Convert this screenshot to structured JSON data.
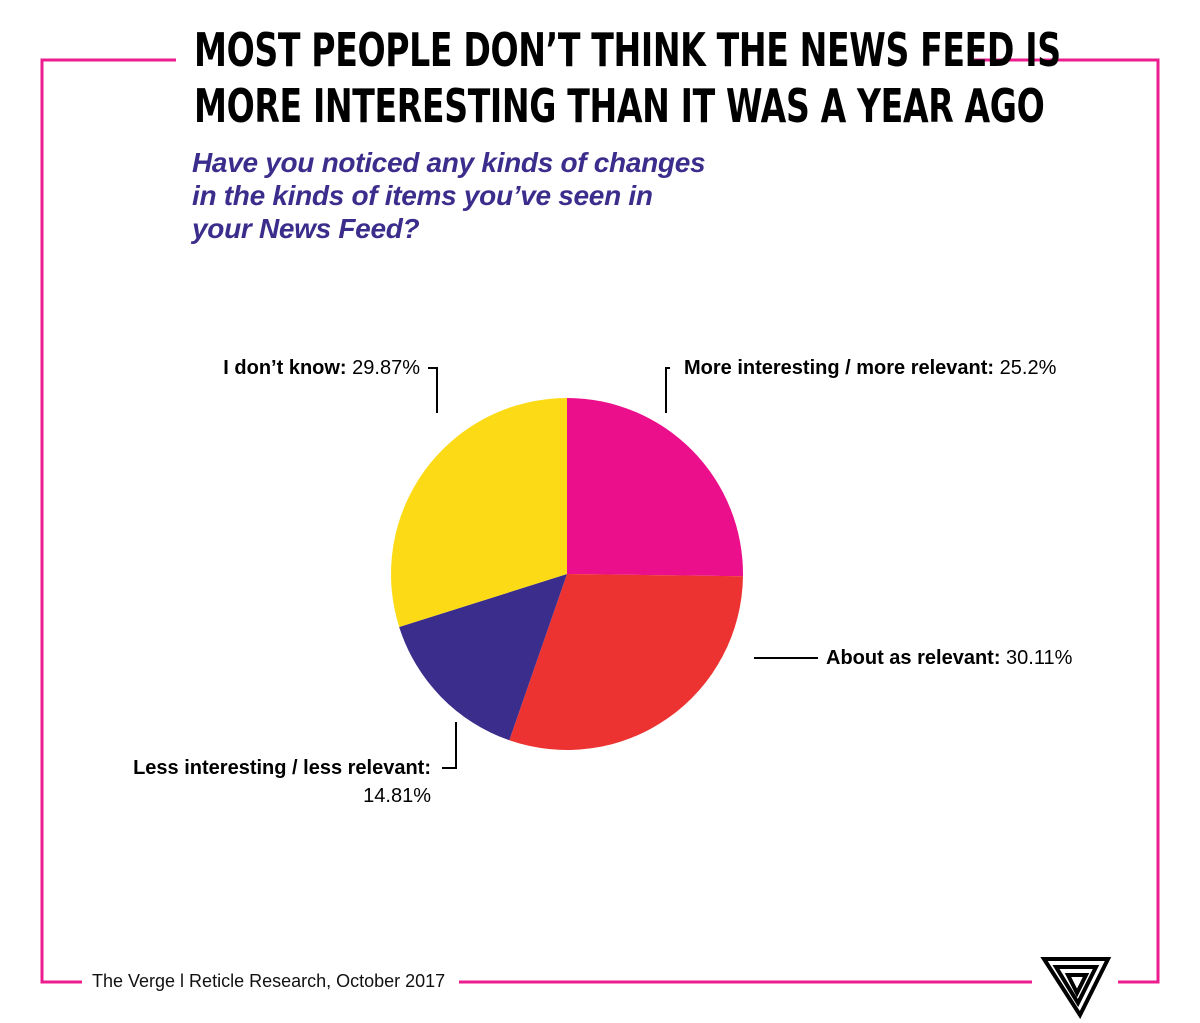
{
  "header": {
    "title_line1": "MOST PEOPLE DON’T THINK THE NEWS FEED IS",
    "title_line2": "MORE INTERESTING THAN IT WAS A YEAR AGO",
    "question": "Have you noticed any kinds of changes in the kinds of items you’ve seen in your News Feed?"
  },
  "footer": {
    "source": "The Verge l Reticle Research, October 2017"
  },
  "colors": {
    "frame": "#ec1c8f",
    "question": "#3a2d8c",
    "more_interesting": "#ec0f8c",
    "about_as_relevant": "#ec3331",
    "less_interesting": "#3a2d8c",
    "dont_know": "#fcdb16"
  },
  "chart_data": {
    "type": "pie",
    "title": "MOST PEOPLE DON’T THINK THE NEWS FEED IS MORE INTERESTING THAN IT WAS A YEAR AGO",
    "subtitle": "Have you noticed any kinds of changes in the kinds of items you’ve seen in your News Feed?",
    "unit": "%",
    "slices": [
      {
        "key": "more",
        "label": "More interesting / more relevant:",
        "value": 25.2,
        "value_label": "25.2%",
        "color": "#ec0f8c"
      },
      {
        "key": "about",
        "label": "About as relevant:",
        "value": 30.11,
        "value_label": "30.11%",
        "color": "#ec3331"
      },
      {
        "key": "less",
        "label": "Less interesting / less relevant:",
        "value": 14.81,
        "value_label": "14.81%",
        "color": "#3a2d8c"
      },
      {
        "key": "idk",
        "label": "I don’t know:",
        "value": 29.87,
        "value_label": "29.87%",
        "color": "#fcdb16"
      }
    ],
    "start_angle": "12 o'clock",
    "direction": "clockwise",
    "legend": "none (labels beside slices)"
  }
}
